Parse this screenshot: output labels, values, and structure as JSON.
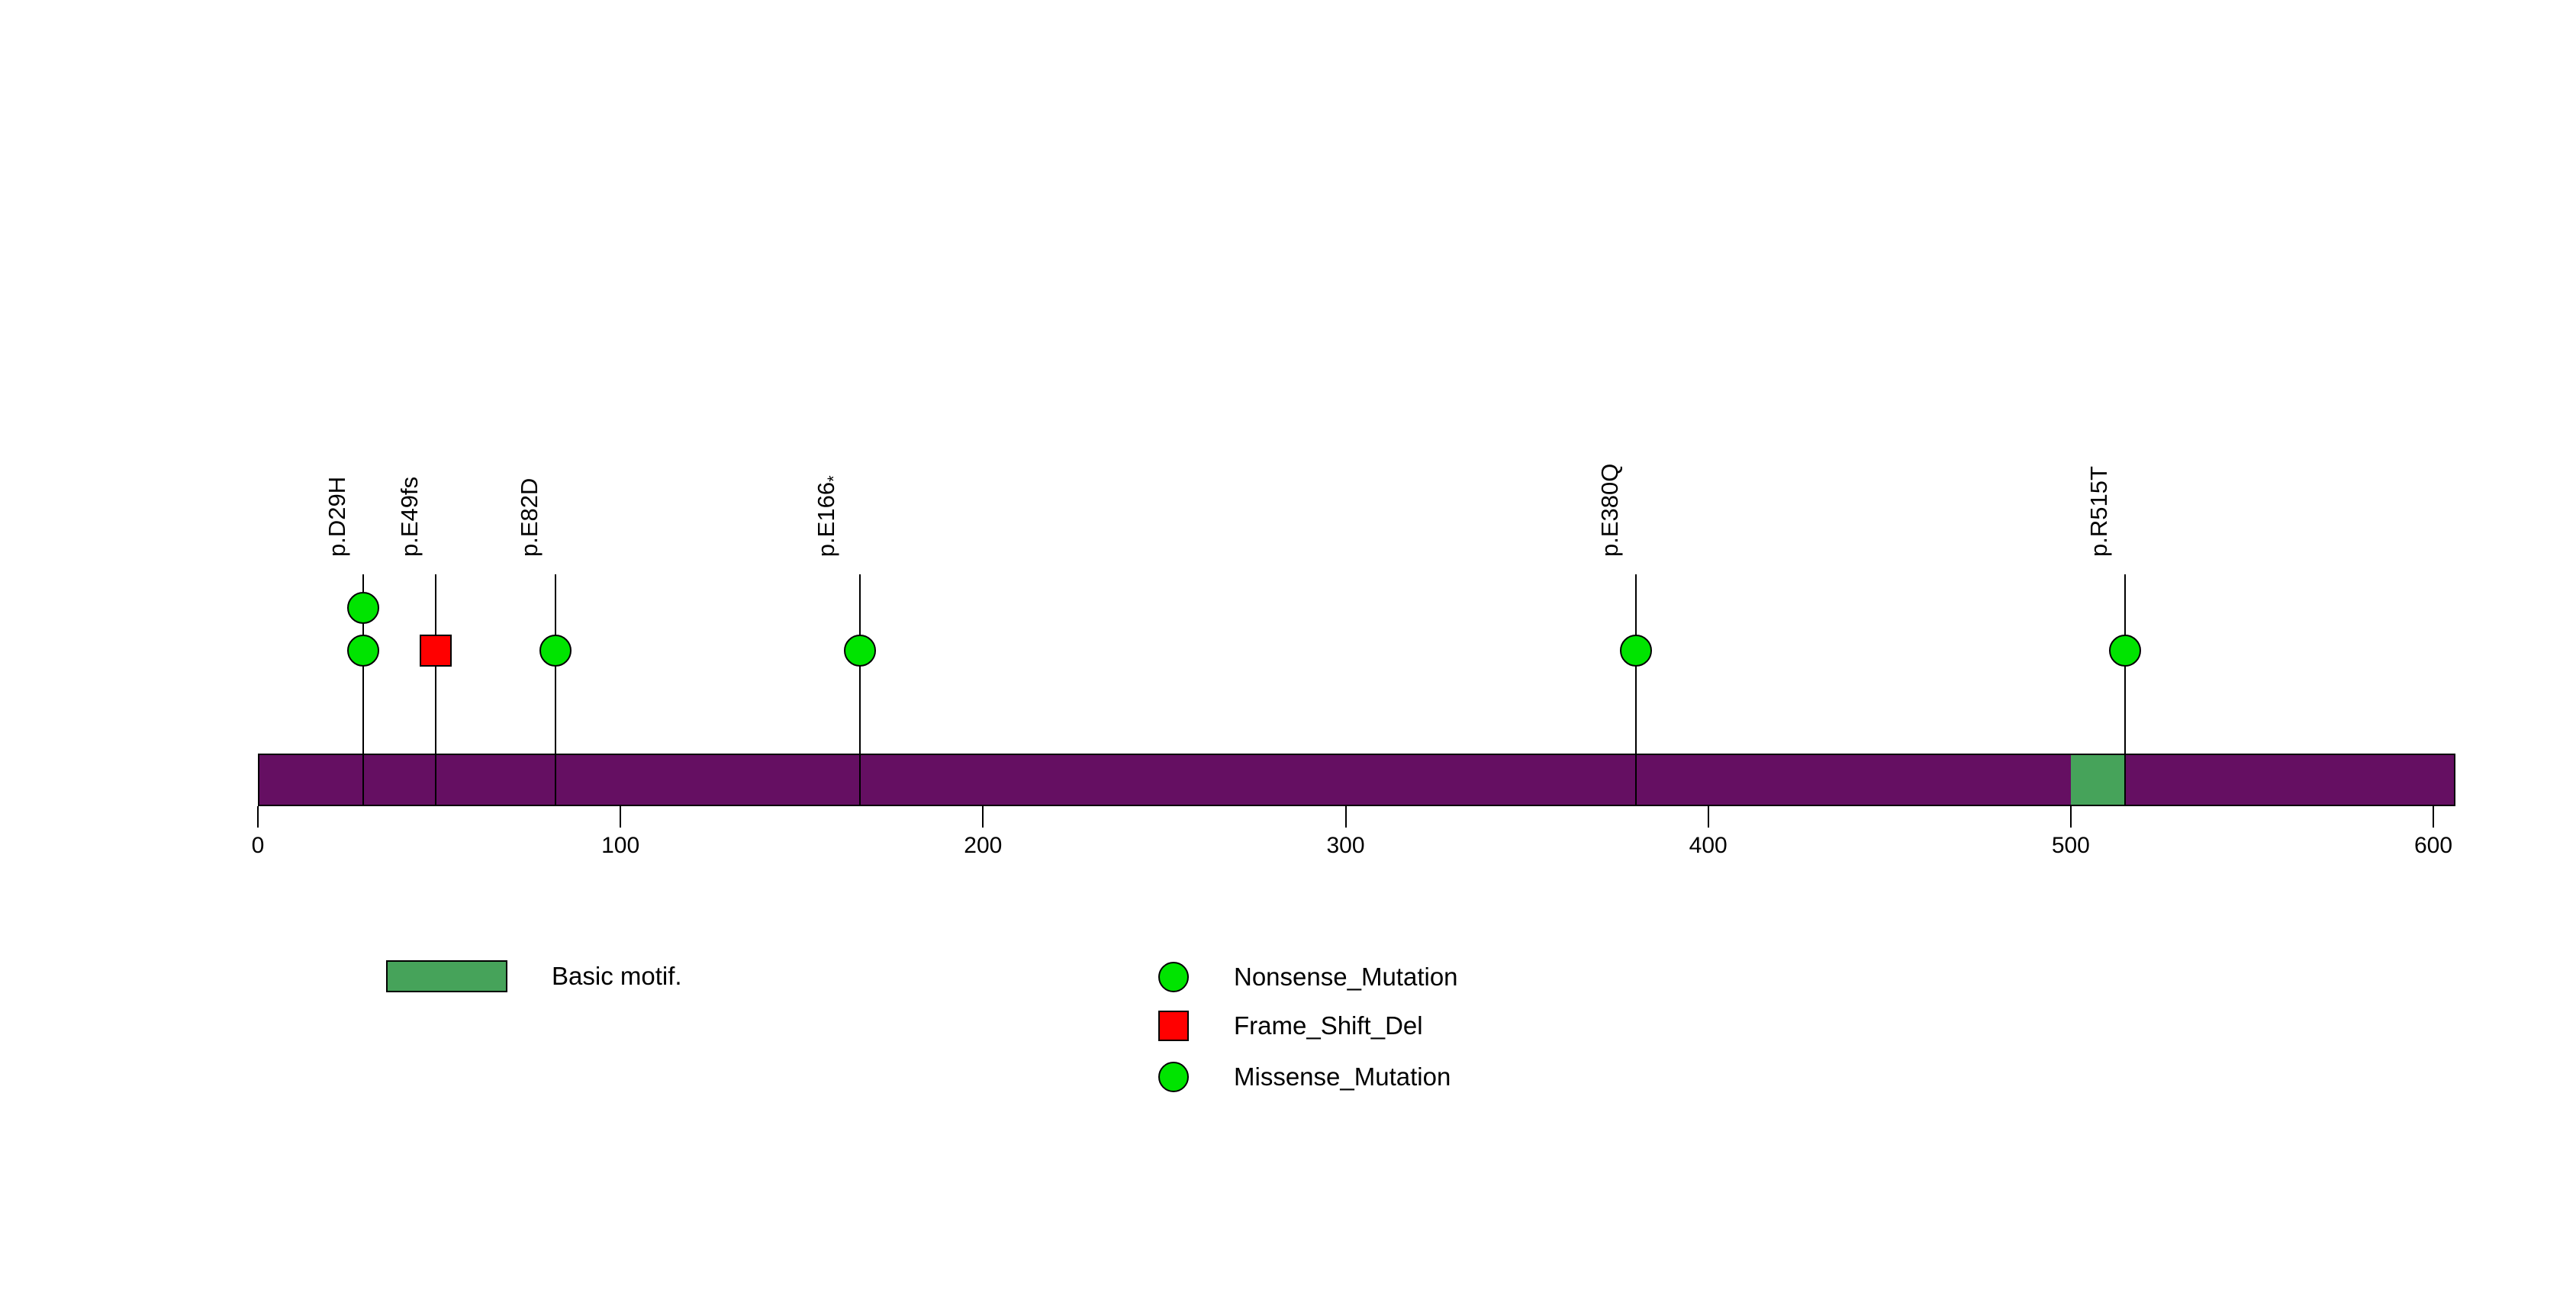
{
  "figure": {
    "background": "#ffffff"
  },
  "chart_data": {
    "type": "lollipop",
    "description": "Protein mutation lollipop plot with domain track",
    "xlim": [
      0,
      606
    ],
    "axis": {
      "ticks": [
        0,
        100,
        200,
        300,
        400,
        500,
        600
      ]
    },
    "protein_bar_color": "#650F62",
    "mutations": [
      {
        "label": "p.D29H",
        "position": 29,
        "type": "Missense_Mutation",
        "count": 2
      },
      {
        "label": "p.E49fs",
        "position": 49,
        "type": "Frame_Shift_Del",
        "count": 1
      },
      {
        "label": "p.E82D",
        "position": 82,
        "type": "Missense_Mutation",
        "count": 1
      },
      {
        "label": "p.E166*",
        "position": 166,
        "type": "Nonsense_Mutation",
        "count": 1
      },
      {
        "label": "p.E380Q",
        "position": 380,
        "type": "Missense_Mutation",
        "count": 1
      },
      {
        "label": "p.R515T",
        "position": 515,
        "type": "Missense_Mutation",
        "count": 1
      }
    ],
    "mutation_colors": {
      "Nonsense_Mutation": "#00E400",
      "Frame_Shift_Del": "#FF0000",
      "Missense_Mutation": "#00E400"
    },
    "mutation_shapes": {
      "Nonsense_Mutation": "circle",
      "Frame_Shift_Del": "square",
      "Missense_Mutation": "circle"
    },
    "domains": [
      {
        "label": "Basic motif.",
        "start": 500,
        "end": 515,
        "color": "#46A35A"
      }
    ],
    "legend": {
      "domain_items": [
        {
          "label": "Basic motif.",
          "color": "#46A35A"
        }
      ],
      "mutation_items": [
        {
          "label": "Nonsense_Mutation",
          "shape": "circle",
          "color": "#00E400"
        },
        {
          "label": "Frame_Shift_Del",
          "shape": "square",
          "color": "#FF0000"
        },
        {
          "label": "Missense_Mutation",
          "shape": "circle",
          "color": "#00E400"
        }
      ]
    }
  }
}
